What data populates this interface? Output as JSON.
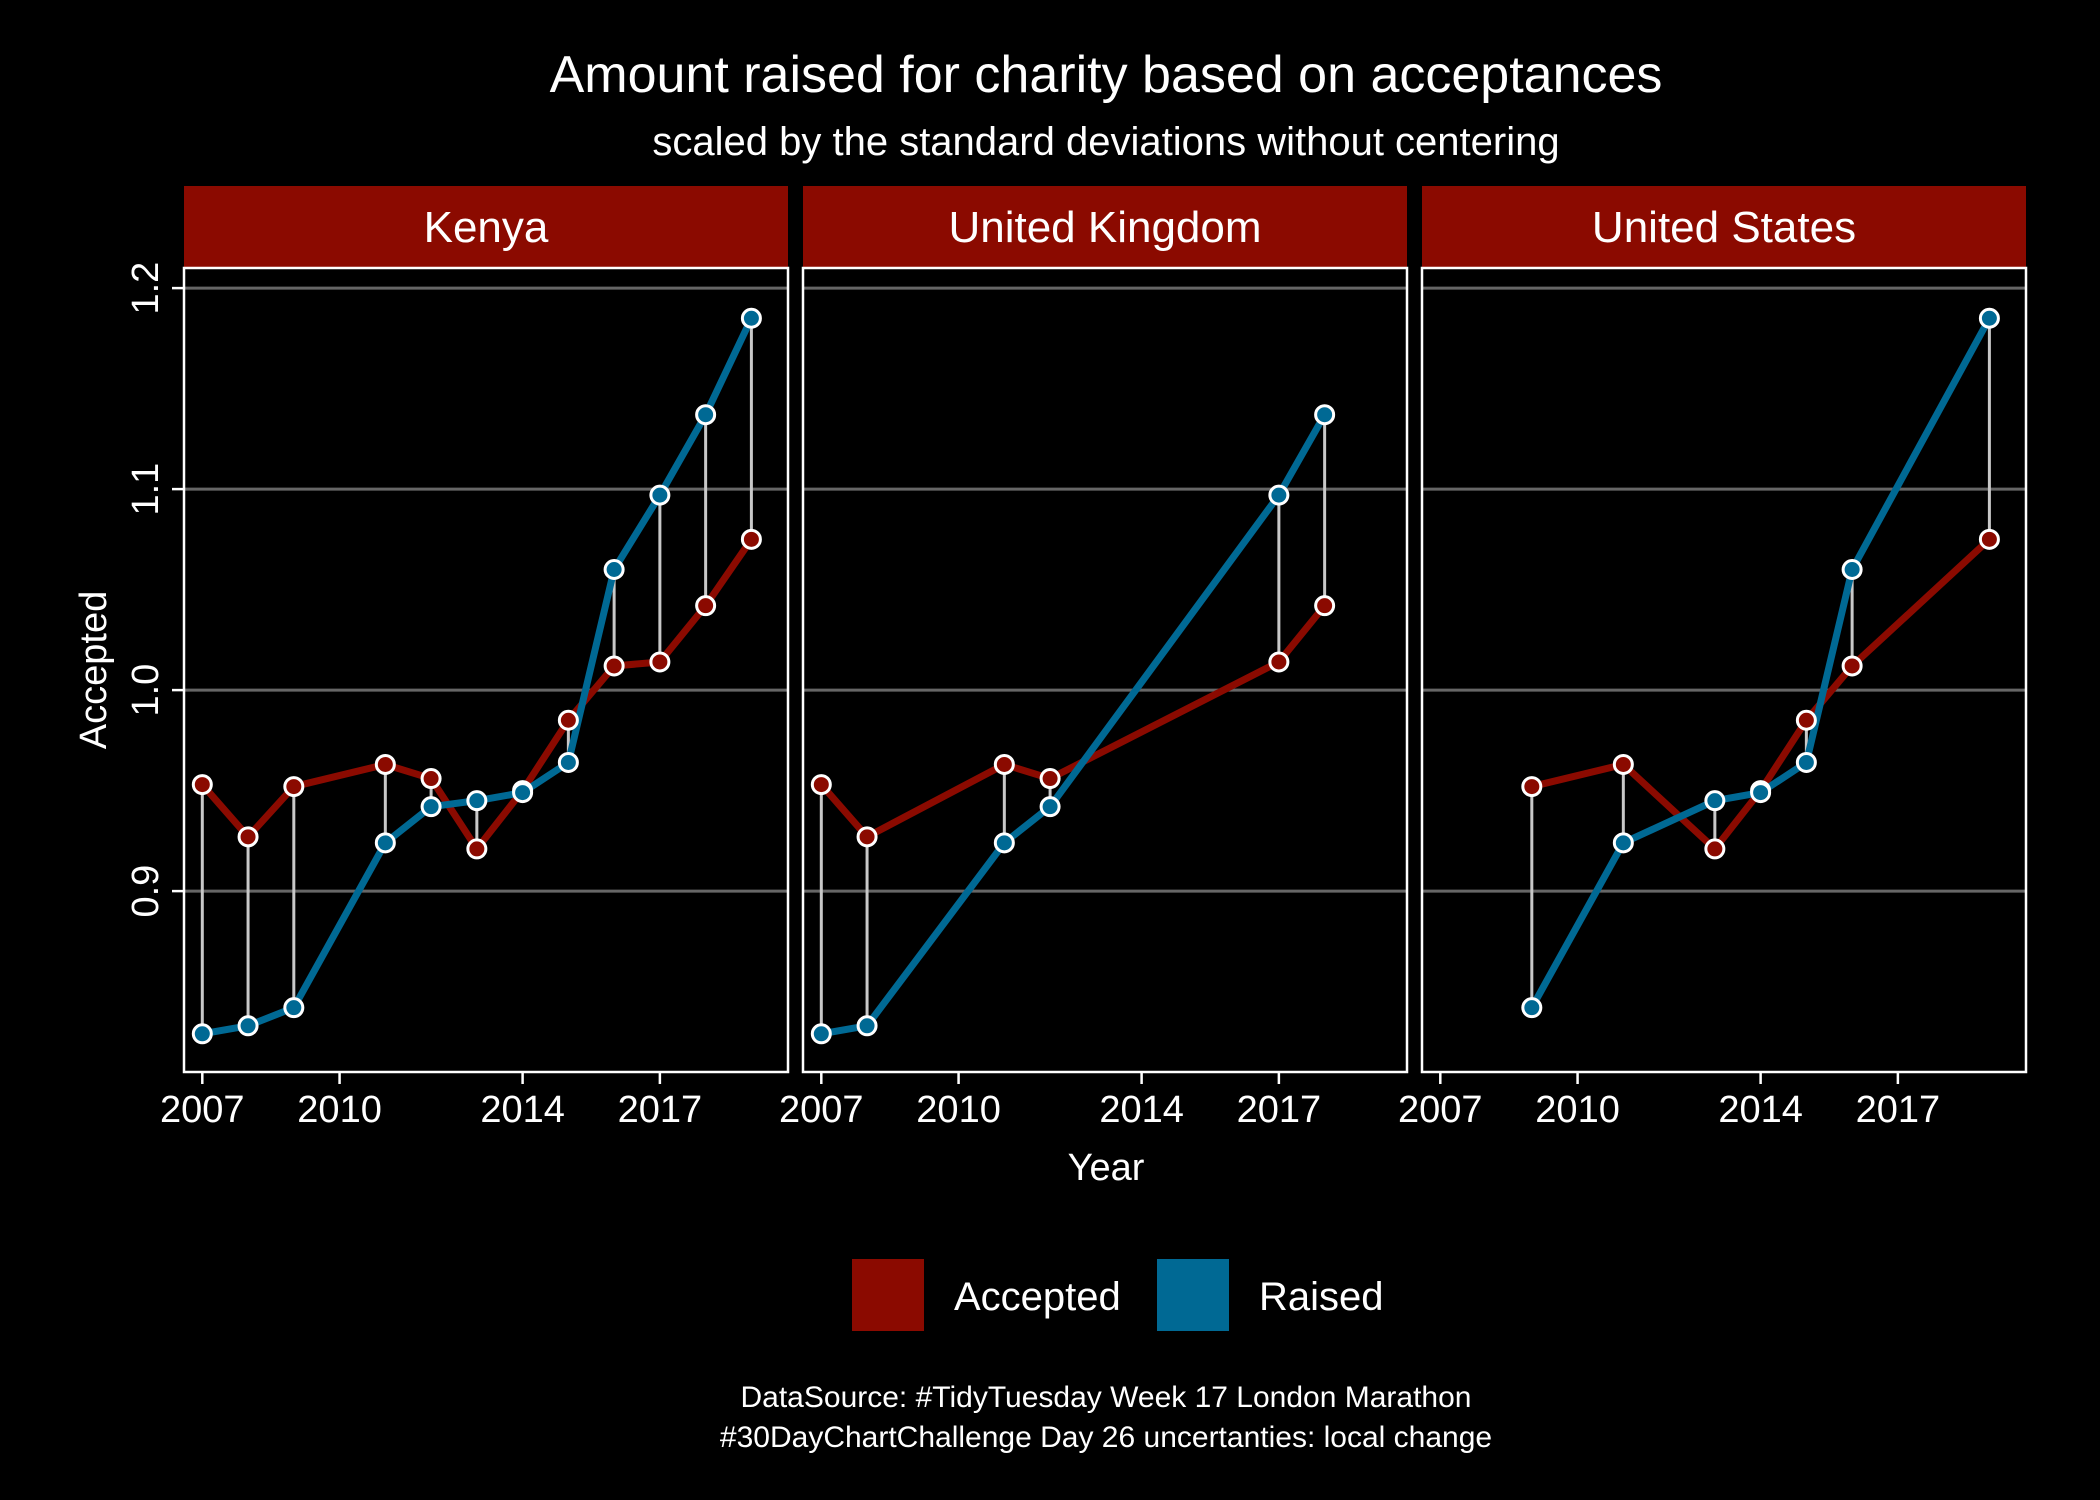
{
  "title": "Amount raised for charity based on acceptances",
  "subtitle": "scaled by the standard deviations without centering",
  "caption_line1": "DataSource: #TidyTuesday Week 17 London Marathon",
  "caption_line2": "#30DayChartChallenge Day 26 uncertanties: local change",
  "colors": {
    "accepted": "#8B0A00",
    "raised": "#006994",
    "strip_bg": "#8B0A00",
    "segment": "#C8C8C8",
    "grid": "#666666"
  },
  "chart_data": {
    "type": "line",
    "xlabel": "Year",
    "ylabel": "Accepted",
    "x_ticks": [
      2007,
      2010,
      2014,
      2017
    ],
    "y_ticks": [
      0.9,
      1.0,
      1.1,
      1.2
    ],
    "y_tick_labels": [
      "0.9",
      "1.0",
      "1.1",
      "1.2"
    ],
    "xlim": [
      2006.6,
      2019.8
    ],
    "ylim": [
      0.81,
      1.21
    ],
    "grid": "horizontal major lines",
    "legend": {
      "position": "bottom",
      "entries": [
        "Accepted",
        "Raised"
      ]
    },
    "panels": [
      {
        "name": "Kenya",
        "series": [
          {
            "name": "Accepted",
            "x": [
              2007,
              2008,
              2009,
              2011,
              2012,
              2013,
              2014,
              2015,
              2016,
              2017,
              2018,
              2019
            ],
            "y": [
              0.953,
              0.927,
              0.952,
              0.963,
              0.956,
              0.921,
              0.95,
              0.985,
              1.012,
              1.014,
              1.042,
              1.075
            ]
          },
          {
            "name": "Raised",
            "x": [
              2007,
              2008,
              2009,
              2011,
              2012,
              2013,
              2014,
              2015,
              2016,
              2017,
              2018,
              2019
            ],
            "y": [
              0.829,
              0.833,
              0.842,
              0.924,
              0.942,
              0.945,
              0.949,
              0.964,
              1.06,
              1.097,
              1.137,
              1.185
            ]
          }
        ]
      },
      {
        "name": "United Kingdom",
        "series": [
          {
            "name": "Accepted",
            "x": [
              2007,
              2008,
              2011,
              2012,
              2017,
              2018
            ],
            "y": [
              0.953,
              0.927,
              0.963,
              0.956,
              1.014,
              1.042
            ]
          },
          {
            "name": "Raised",
            "x": [
              2007,
              2008,
              2011,
              2012,
              2017,
              2018
            ],
            "y": [
              0.829,
              0.833,
              0.924,
              0.942,
              1.097,
              1.137
            ]
          }
        ]
      },
      {
        "name": "United States",
        "series": [
          {
            "name": "Accepted",
            "x": [
              2009,
              2011,
              2013,
              2014,
              2015,
              2016,
              2019
            ],
            "y": [
              0.952,
              0.963,
              0.921,
              0.95,
              0.985,
              1.012,
              1.075
            ]
          },
          {
            "name": "Raised",
            "x": [
              2009,
              2011,
              2013,
              2014,
              2015,
              2016,
              2019
            ],
            "y": [
              0.842,
              0.924,
              0.945,
              0.949,
              0.964,
              1.06,
              1.185
            ]
          }
        ]
      }
    ]
  }
}
